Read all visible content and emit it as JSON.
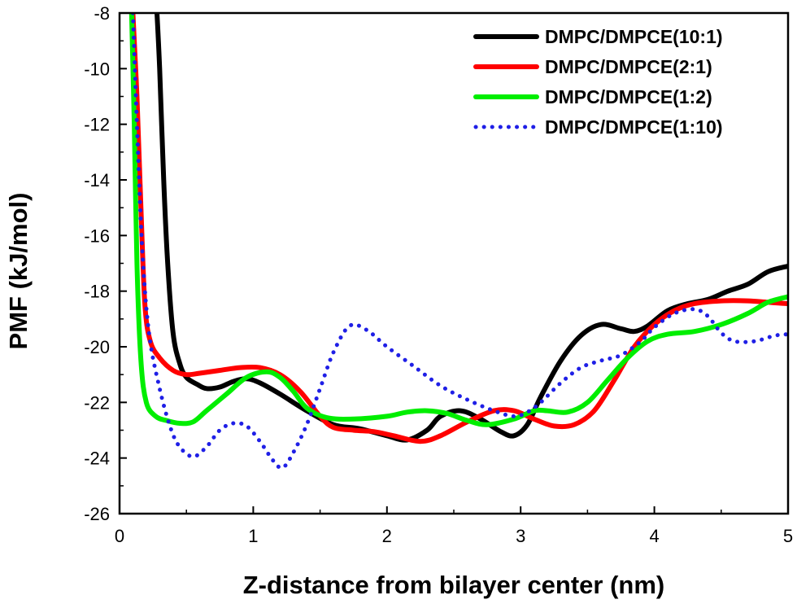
{
  "chart_data": {
    "type": "line",
    "xlabel": "Z-distance from bilayer center (nm)",
    "ylabel": "PMF (kJ/mol)",
    "xlim": [
      0,
      5
    ],
    "ylim": [
      -26,
      -8
    ],
    "xticks": [
      0,
      1,
      2,
      3,
      4,
      5
    ],
    "yticks": [
      -8,
      -10,
      -12,
      -14,
      -16,
      -18,
      -20,
      -22,
      -24,
      -26
    ],
    "grid": false,
    "legend_position": "top-right",
    "series": [
      {
        "name": "DMPC/DMPCE(10:1)",
        "color": "#000000",
        "style": "solid",
        "points": [
          [
            0.28,
            -8
          ],
          [
            0.3,
            -10
          ],
          [
            0.33,
            -14
          ],
          [
            0.36,
            -17
          ],
          [
            0.4,
            -19.5
          ],
          [
            0.45,
            -20.6
          ],
          [
            0.5,
            -21.1
          ],
          [
            0.58,
            -21.35
          ],
          [
            0.65,
            -21.5
          ],
          [
            0.75,
            -21.45
          ],
          [
            0.85,
            -21.25
          ],
          [
            0.95,
            -21.15
          ],
          [
            1.05,
            -21.3
          ],
          [
            1.2,
            -21.7
          ],
          [
            1.4,
            -22.3
          ],
          [
            1.6,
            -22.8
          ],
          [
            1.8,
            -22.95
          ],
          [
            2.0,
            -23.2
          ],
          [
            2.15,
            -23.35
          ],
          [
            2.3,
            -23.0
          ],
          [
            2.4,
            -22.5
          ],
          [
            2.55,
            -22.3
          ],
          [
            2.7,
            -22.6
          ],
          [
            2.85,
            -23.05
          ],
          [
            2.95,
            -23.2
          ],
          [
            3.05,
            -22.8
          ],
          [
            3.15,
            -21.8
          ],
          [
            3.3,
            -20.5
          ],
          [
            3.45,
            -19.6
          ],
          [
            3.6,
            -19.2
          ],
          [
            3.75,
            -19.35
          ],
          [
            3.85,
            -19.45
          ],
          [
            3.95,
            -19.25
          ],
          [
            4.1,
            -18.7
          ],
          [
            4.25,
            -18.45
          ],
          [
            4.4,
            -18.3
          ],
          [
            4.55,
            -18.0
          ],
          [
            4.7,
            -17.75
          ],
          [
            4.85,
            -17.3
          ],
          [
            5.0,
            -17.1
          ]
        ]
      },
      {
        "name": "DMPC/DMPCE(2:1)",
        "color": "#ff0000",
        "style": "solid",
        "points": [
          [
            0.1,
            -8
          ],
          [
            0.13,
            -11
          ],
          [
            0.16,
            -15
          ],
          [
            0.19,
            -18.5
          ],
          [
            0.23,
            -19.8
          ],
          [
            0.3,
            -20.4
          ],
          [
            0.4,
            -20.85
          ],
          [
            0.5,
            -21.0
          ],
          [
            0.6,
            -20.95
          ],
          [
            0.75,
            -20.85
          ],
          [
            0.9,
            -20.75
          ],
          [
            1.05,
            -20.75
          ],
          [
            1.2,
            -21.0
          ],
          [
            1.35,
            -21.6
          ],
          [
            1.5,
            -22.5
          ],
          [
            1.6,
            -22.9
          ],
          [
            1.75,
            -23.0
          ],
          [
            1.9,
            -23.05
          ],
          [
            2.05,
            -23.2
          ],
          [
            2.25,
            -23.4
          ],
          [
            2.4,
            -23.2
          ],
          [
            2.6,
            -22.7
          ],
          [
            2.8,
            -22.3
          ],
          [
            2.95,
            -22.3
          ],
          [
            3.1,
            -22.6
          ],
          [
            3.25,
            -22.85
          ],
          [
            3.4,
            -22.8
          ],
          [
            3.55,
            -22.3
          ],
          [
            3.7,
            -21.2
          ],
          [
            3.85,
            -20.0
          ],
          [
            4.0,
            -19.2
          ],
          [
            4.15,
            -18.7
          ],
          [
            4.3,
            -18.45
          ],
          [
            4.5,
            -18.35
          ],
          [
            4.7,
            -18.35
          ],
          [
            4.85,
            -18.4
          ],
          [
            5.0,
            -18.45
          ]
        ]
      },
      {
        "name": "DMPC/DMPCE(1:2)",
        "color": "#00ee00",
        "style": "solid",
        "points": [
          [
            0.09,
            -8
          ],
          [
            0.11,
            -12
          ],
          [
            0.13,
            -17
          ],
          [
            0.16,
            -20.5
          ],
          [
            0.2,
            -22.0
          ],
          [
            0.27,
            -22.5
          ],
          [
            0.35,
            -22.65
          ],
          [
            0.45,
            -22.75
          ],
          [
            0.55,
            -22.7
          ],
          [
            0.65,
            -22.3
          ],
          [
            0.8,
            -21.7
          ],
          [
            0.95,
            -21.1
          ],
          [
            1.1,
            -20.9
          ],
          [
            1.2,
            -21.1
          ],
          [
            1.3,
            -21.6
          ],
          [
            1.4,
            -22.2
          ],
          [
            1.55,
            -22.55
          ],
          [
            1.75,
            -22.6
          ],
          [
            2.0,
            -22.5
          ],
          [
            2.15,
            -22.35
          ],
          [
            2.3,
            -22.3
          ],
          [
            2.45,
            -22.4
          ],
          [
            2.6,
            -22.65
          ],
          [
            2.75,
            -22.8
          ],
          [
            2.95,
            -22.6
          ],
          [
            3.1,
            -22.3
          ],
          [
            3.2,
            -22.3
          ],
          [
            3.35,
            -22.35
          ],
          [
            3.5,
            -22.0
          ],
          [
            3.65,
            -21.2
          ],
          [
            3.8,
            -20.4
          ],
          [
            3.95,
            -19.8
          ],
          [
            4.1,
            -19.55
          ],
          [
            4.3,
            -19.45
          ],
          [
            4.5,
            -19.2
          ],
          [
            4.7,
            -18.8
          ],
          [
            4.85,
            -18.4
          ],
          [
            5.0,
            -18.2
          ]
        ]
      },
      {
        "name": "DMPC/DMPCE(1:10)",
        "color": "#1f1fe6",
        "style": "dotted",
        "points": [
          [
            0.1,
            -8
          ],
          [
            0.13,
            -12
          ],
          [
            0.17,
            -16.5
          ],
          [
            0.22,
            -19.5
          ],
          [
            0.3,
            -21.5
          ],
          [
            0.38,
            -22.9
          ],
          [
            0.45,
            -23.6
          ],
          [
            0.55,
            -23.95
          ],
          [
            0.65,
            -23.6
          ],
          [
            0.75,
            -23.0
          ],
          [
            0.85,
            -22.75
          ],
          [
            0.95,
            -22.85
          ],
          [
            1.05,
            -23.4
          ],
          [
            1.15,
            -24.1
          ],
          [
            1.22,
            -24.35
          ],
          [
            1.3,
            -23.8
          ],
          [
            1.4,
            -22.8
          ],
          [
            1.5,
            -21.5
          ],
          [
            1.6,
            -20.2
          ],
          [
            1.72,
            -19.25
          ],
          [
            1.85,
            -19.4
          ],
          [
            2.0,
            -20.0
          ],
          [
            2.2,
            -20.7
          ],
          [
            2.4,
            -21.4
          ],
          [
            2.6,
            -21.9
          ],
          [
            2.8,
            -22.3
          ],
          [
            2.95,
            -22.5
          ],
          [
            3.05,
            -22.35
          ],
          [
            3.15,
            -22.0
          ],
          [
            3.3,
            -21.3
          ],
          [
            3.45,
            -20.75
          ],
          [
            3.6,
            -20.5
          ],
          [
            3.75,
            -20.3
          ],
          [
            3.9,
            -19.8
          ],
          [
            4.0,
            -19.3
          ],
          [
            4.15,
            -18.8
          ],
          [
            4.3,
            -18.65
          ],
          [
            4.4,
            -18.9
          ],
          [
            4.5,
            -19.5
          ],
          [
            4.6,
            -19.8
          ],
          [
            4.75,
            -19.8
          ],
          [
            4.9,
            -19.6
          ],
          [
            5.0,
            -19.55
          ]
        ]
      }
    ]
  }
}
